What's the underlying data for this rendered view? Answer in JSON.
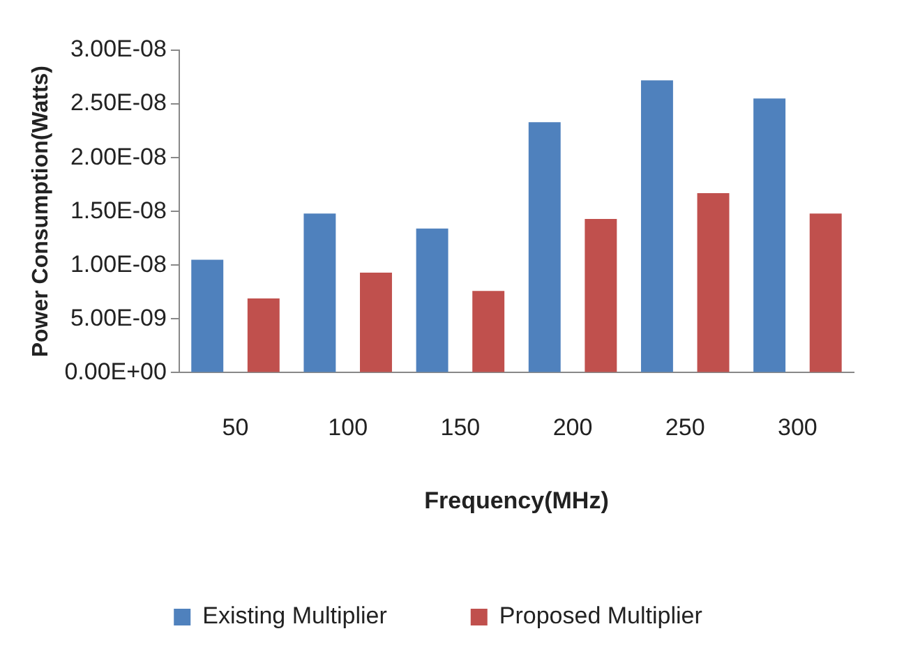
{
  "chart_data": {
    "type": "bar",
    "xlabel": "Frequency(MHz)",
    "ylabel": "Power Consumption(Watts)",
    "categories": [
      "50",
      "100",
      "150",
      "200",
      "250",
      "300"
    ],
    "series": [
      {
        "name": "Existing Multiplier",
        "color": "#4f81bd",
        "values": [
          1.05e-08,
          1.48e-08,
          1.34e-08,
          2.33e-08,
          2.72e-08,
          2.55e-08
        ]
      },
      {
        "name": "Proposed Multiplier",
        "color": "#c0504d",
        "values": [
          6.9e-09,
          9.3e-09,
          7.6e-09,
          1.43e-08,
          1.67e-08,
          1.48e-08
        ]
      }
    ],
    "ylim": [
      0,
      3e-08
    ],
    "yticks": [
      {
        "value": 0,
        "label": "0.00E+00"
      },
      {
        "value": 5e-09,
        "label": "5.00E-09"
      },
      {
        "value": 1e-08,
        "label": "1.00E-08"
      },
      {
        "value": 1.5e-08,
        "label": "1.50E-08"
      },
      {
        "value": 2e-08,
        "label": "2.00E-08"
      },
      {
        "value": 2.5e-08,
        "label": "2.50E-08"
      },
      {
        "value": 3e-08,
        "label": "3.00E-08"
      }
    ],
    "grid": false,
    "legend": "bottom"
  }
}
